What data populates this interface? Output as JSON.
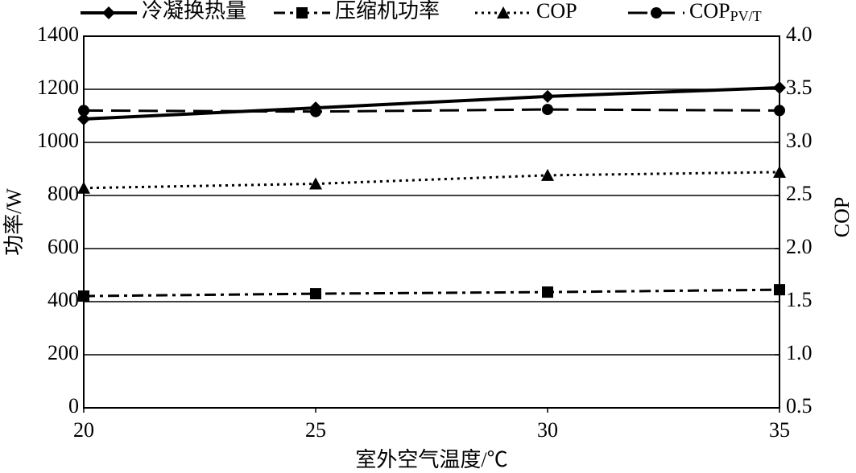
{
  "chart_data": {
    "type": "line",
    "xlabel": "室外空气温度/℃",
    "ylabel": "功率/W",
    "y2label": "COP",
    "x": [
      20,
      25,
      30,
      35
    ],
    "xlim": [
      20,
      35
    ],
    "xticks": [
      20,
      25,
      30,
      35
    ],
    "ylim": [
      0,
      1400
    ],
    "yticks": [
      0,
      200,
      400,
      600,
      800,
      1000,
      1200,
      1400
    ],
    "y2lim": [
      0.5,
      4.0
    ],
    "y2ticks": [
      0.5,
      {
        "value": 1,
        "label": "1.0"
      },
      1.5,
      {
        "value": 2,
        "label": "2.0"
      },
      2.5,
      {
        "value": 3,
        "label": "3.0"
      },
      3.5,
      {
        "value": 4,
        "label": "4.0"
      }
    ],
    "grid": true,
    "legend": "top",
    "series": [
      {
        "name": "冷凝换热量",
        "color": "#000000",
        "style": "solid",
        "marker": "diamond",
        "values": [
          1088,
          1130,
          1173,
          1206
        ]
      },
      {
        "name": "压缩机功率",
        "color": "#000000",
        "style": "dashdot",
        "marker": "square",
        "values": [
          421,
          430,
          436,
          445
        ]
      },
      {
        "name": "COP",
        "color": "#000000",
        "style": "dotted",
        "marker": "triangle",
        "axis": "y2",
        "values": [
          2.57,
          2.61,
          2.69,
          2.72
        ]
      },
      {
        "name": "COP",
        "name_subscript": "PV/T",
        "color": "#000000",
        "style": "dashed",
        "marker": "circle",
        "axis": "y2",
        "values": [
          3.3,
          3.29,
          3.31,
          3.3
        ]
      }
    ]
  }
}
